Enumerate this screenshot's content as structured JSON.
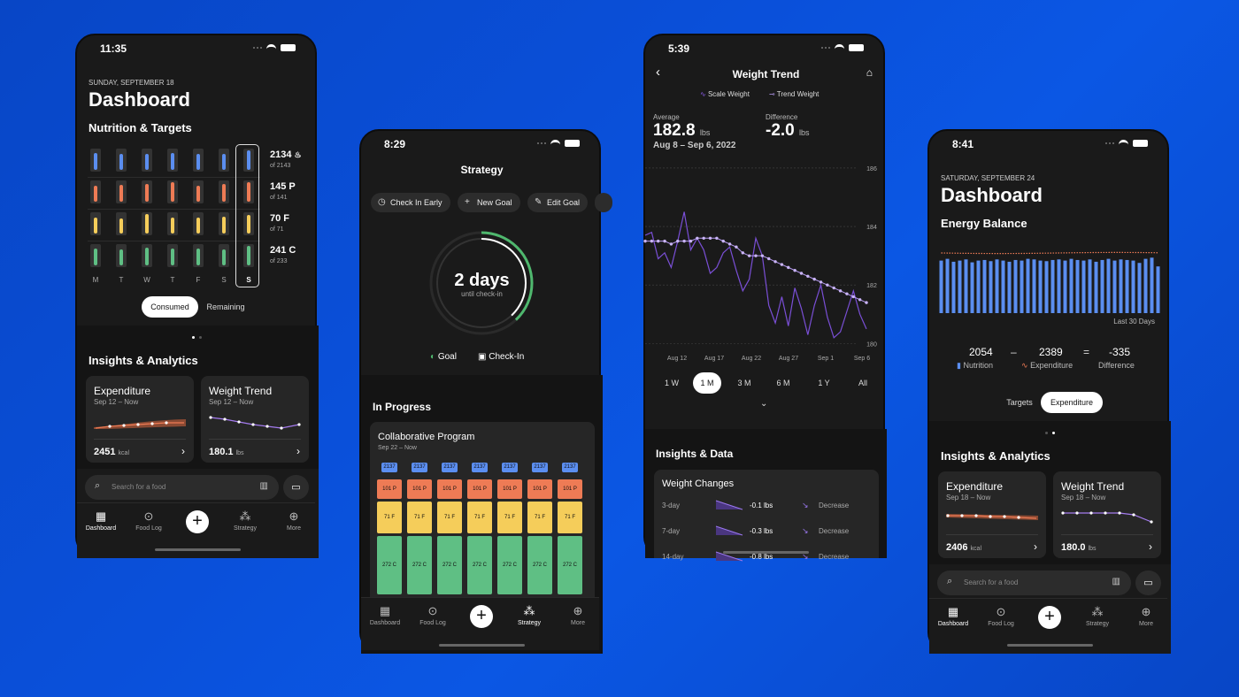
{
  "screen1": {
    "time": "11:35",
    "date": "SUNDAY, SEPTEMBER 18",
    "title": "Dashboard",
    "section": "Nutrition & Targets",
    "days": [
      "M",
      "T",
      "W",
      "T",
      "F",
      "S",
      "S"
    ],
    "macros": [
      {
        "value": "2134",
        "unit_icon": "flame-icon",
        "target": "of 2143",
        "color": "#5b8ef0",
        "fills": [
          0.85,
          0.8,
          0.82,
          0.88,
          0.8,
          0.84,
          0.99
        ]
      },
      {
        "value": "145 P",
        "target": "of 141",
        "color": "#ee7b55",
        "fills": [
          0.8,
          0.85,
          0.9,
          1.0,
          0.8,
          0.9,
          0.99
        ]
      },
      {
        "value": "70 F",
        "target": "of 71",
        "color": "#f5cd5a",
        "fills": [
          0.8,
          0.75,
          1.0,
          0.82,
          0.8,
          0.88,
          0.95
        ]
      },
      {
        "value": "241 C",
        "target": "of 233",
        "color": "#5fbf84",
        "fills": [
          0.85,
          0.8,
          0.9,
          0.85,
          0.88,
          0.82,
          0.99
        ]
      }
    ],
    "toggle": [
      "Consumed",
      "Remaining"
    ],
    "insights": "Insights & Analytics",
    "cards": [
      {
        "title": "Expenditure",
        "range": "Sep 12 – Now",
        "value": "2451",
        "unit": "kcal"
      },
      {
        "title": "Weight Trend",
        "range": "Sep 12 – Now",
        "value": "180.1",
        "unit": "lbs"
      }
    ],
    "search_placeholder": "Search for a food",
    "nav": [
      "Dashboard",
      "Food Log",
      "Strategy",
      "More"
    ]
  },
  "screen2": {
    "time": "8:29",
    "title": "Strategy",
    "actions": [
      "Check In Early",
      "New Goal",
      "Edit Goal"
    ],
    "ring_value": "2 days",
    "ring_label": "until check-in",
    "ring_progress": 0.38,
    "legend": [
      "Goal",
      "Check-In"
    ],
    "section": "In Progress",
    "program": "Collaborative Program",
    "program_range": "Sep 22 – Now",
    "cols": [
      {
        "cal": "2137",
        "p": "101 P",
        "f": "71 F",
        "c": "272 C"
      },
      {
        "cal": "2137",
        "p": "101 P",
        "f": "71 F",
        "c": "272 C"
      },
      {
        "cal": "2137",
        "p": "101 P",
        "f": "71 F",
        "c": "272 C"
      },
      {
        "cal": "2137",
        "p": "101 P",
        "f": "71 F",
        "c": "272 C"
      },
      {
        "cal": "2137",
        "p": "101 P",
        "f": "71 F",
        "c": "272 C"
      },
      {
        "cal": "2137",
        "p": "101 P",
        "f": "71 F",
        "c": "272 C"
      },
      {
        "cal": "2137",
        "p": "101 P",
        "f": "71 F",
        "c": "272 C"
      }
    ],
    "nav": [
      "Dashboard",
      "Food Log",
      "Strategy",
      "More"
    ]
  },
  "screen3": {
    "time": "5:39",
    "title": "Weight Trend",
    "legend": [
      "Scale Weight",
      "Trend Weight"
    ],
    "average_label": "Average",
    "average": "182.8",
    "average_unit": "lbs",
    "average_range": "Aug 8 – Sep 6, 2022",
    "difference_label": "Difference",
    "difference": "-2.0",
    "difference_unit": "lbs",
    "chart_data": {
      "type": "line",
      "ylim": [
        179.8,
        186.3
      ],
      "yticks": [
        "186",
        "184",
        "182",
        "180"
      ],
      "xticks": [
        "Aug 12",
        "Aug 17",
        "Aug 22",
        "Aug 27",
        "Sep 1",
        "Sep 6"
      ],
      "series": [
        {
          "name": "Scale Weight",
          "values": [
            183.7,
            183.8,
            182.9,
            183.1,
            182.6,
            183.5,
            184.5,
            183.2,
            183.6,
            183.2,
            182.4,
            182.6,
            183.1,
            183.3,
            182.5,
            181.8,
            182.2,
            183.6,
            183.0,
            181.3,
            180.7,
            181.6,
            180.6,
            181.9,
            181.2,
            180.3,
            181.3,
            182.0,
            180.9,
            180.2,
            180.4,
            181.1,
            181.8,
            181.0,
            180.5
          ]
        },
        {
          "name": "Trend Weight",
          "values": [
            183.5,
            183.5,
            183.5,
            183.5,
            183.4,
            183.5,
            183.5,
            183.5,
            183.6,
            183.6,
            183.6,
            183.6,
            183.5,
            183.4,
            183.3,
            183.1,
            183.0,
            183.0,
            183.0,
            182.9,
            182.8,
            182.7,
            182.6,
            182.5,
            182.4,
            182.3,
            182.2,
            182.1,
            182.0,
            181.9,
            181.8,
            181.7,
            181.6,
            181.5,
            181.4
          ]
        }
      ]
    },
    "ranges": [
      "1 W",
      "1 M",
      "3 M",
      "6 M",
      "1 Y",
      "All"
    ],
    "range_selected": "1 M",
    "section": "Insights & Data",
    "card_title": "Weight Changes",
    "changes": [
      {
        "period": "3-day",
        "value": "-0.1 lbs",
        "label": "Decrease"
      },
      {
        "period": "7-day",
        "value": "-0.3 lbs",
        "label": "Decrease"
      },
      {
        "period": "14-day",
        "value": "-0.8 lbs",
        "label": "Decrease"
      }
    ]
  },
  "screen4": {
    "time": "8:41",
    "date": "SATURDAY, SEPTEMBER 24",
    "title": "Dashboard",
    "section": "Energy Balance",
    "chart_data": {
      "type": "bar",
      "values": [
        0.9,
        0.93,
        0.88,
        0.9,
        0.92,
        0.87,
        0.9,
        0.91,
        0.89,
        0.92,
        0.9,
        0.88,
        0.91,
        0.9,
        0.93,
        0.92,
        0.9,
        0.89,
        0.91,
        0.92,
        0.9,
        0.93,
        0.91,
        0.9,
        0.92,
        0.88,
        0.91,
        0.93,
        0.9,
        0.92,
        0.91,
        0.9,
        0.86,
        0.93,
        0.95,
        0.8
      ]
    },
    "chart_label": "Last 30 Days",
    "nutrition": "2054",
    "nutrition_label": "Nutrition",
    "minus": "–",
    "expenditure": "2389",
    "expenditure_label": "Expenditure",
    "equals": "=",
    "difference": "-335",
    "difference_label": "Difference",
    "toggle": [
      "Targets",
      "Expenditure"
    ],
    "insights": "Insights & Analytics",
    "cards": [
      {
        "title": "Expenditure",
        "range": "Sep 18 – Now",
        "value": "2406",
        "unit": "kcal"
      },
      {
        "title": "Weight Trend",
        "range": "Sep 18 – Now",
        "value": "180.0",
        "unit": "lbs"
      }
    ],
    "search_placeholder": "Search for a food",
    "nav": [
      "Dashboard",
      "Food Log",
      "Strategy",
      "More"
    ]
  }
}
